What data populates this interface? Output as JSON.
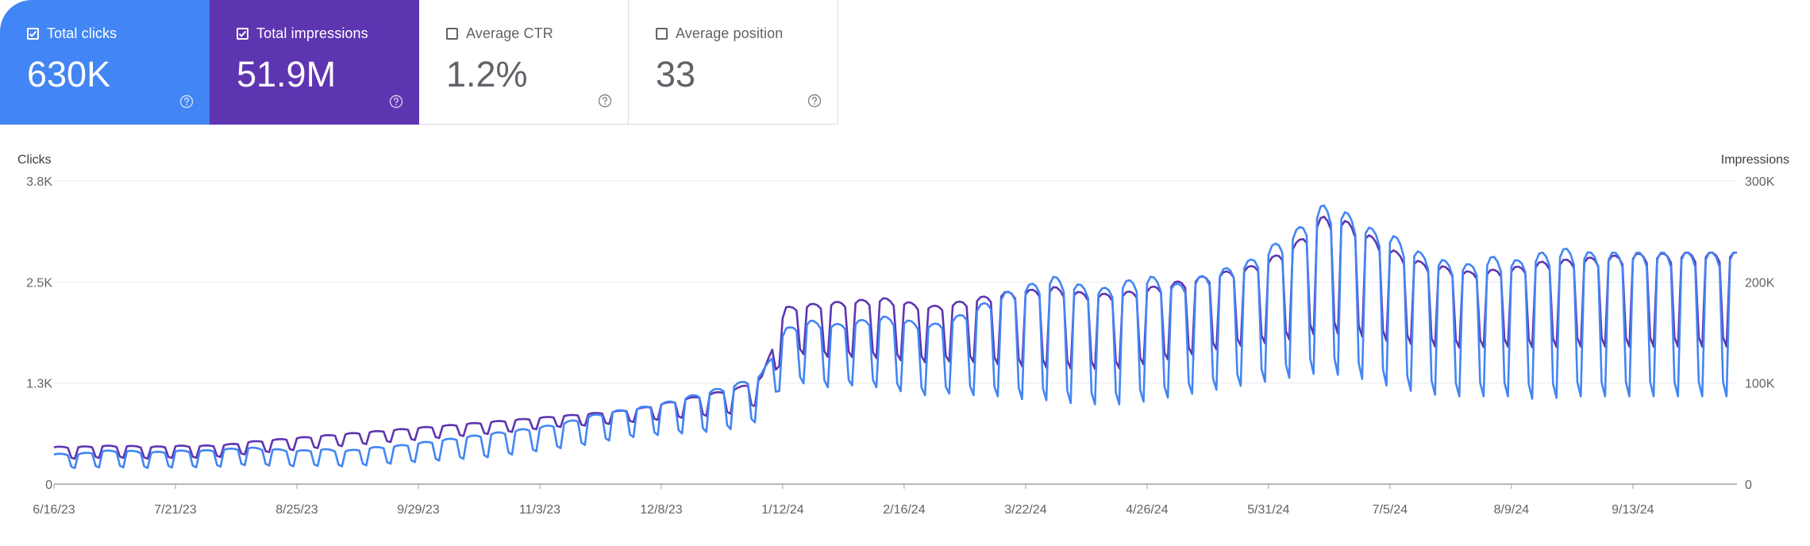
{
  "metrics": [
    {
      "label": "Total clicks",
      "value": "630K",
      "checked": true,
      "bg": "#4285f4",
      "fg": "#ffffff"
    },
    {
      "label": "Total impressions",
      "value": "51.9M",
      "checked": true,
      "bg": "#5e35b1",
      "fg": "#ffffff"
    },
    {
      "label": "Average CTR",
      "value": "1.2%",
      "checked": false,
      "bg": "#ffffff",
      "fg": "#5f6368"
    },
    {
      "label": "Average position",
      "value": "33",
      "checked": false,
      "bg": "#ffffff",
      "fg": "#5f6368"
    }
  ],
  "help_icon": "help-circle-icon",
  "colors": {
    "clicks": "#4285f4",
    "impressions": "#5e35b1",
    "grid": "#e8eaed",
    "axis": "#9aa0a6"
  },
  "chart_data": {
    "type": "line",
    "x_ticks": [
      "6/16/23",
      "7/21/23",
      "8/25/23",
      "9/29/23",
      "11/3/23",
      "12/8/23",
      "1/12/24",
      "2/16/24",
      "3/22/24",
      "4/26/24",
      "5/31/24",
      "7/5/24",
      "8/9/24",
      "9/13/24"
    ],
    "x_start": "6/16/23",
    "x_end": "10/13/24",
    "ylabel_left": "Clicks",
    "ylabel_right": "Impressions",
    "yticks_left": [
      "0",
      "1.3K",
      "2.5K",
      "3.8K"
    ],
    "yticks_right": [
      "0",
      "100K",
      "200K",
      "300K"
    ],
    "ylim_left": [
      0,
      3800
    ],
    "ylim_right": [
      0,
      300000
    ],
    "grid": true,
    "weekly_period_days": 7,
    "series": [
      {
        "name": "Clicks",
        "axis": "left",
        "color": "#4285f4",
        "weekday_peak": [
          380,
          380,
          420,
          420,
          400,
          420,
          420,
          440,
          460,
          440,
          420,
          440,
          420,
          460,
          480,
          520,
          560,
          600,
          640,
          680,
          720,
          780,
          860,
          920,
          960,
          1020,
          1100,
          1180,
          1260,
          1380,
          1950,
          2050,
          2000,
          2050,
          2100,
          2050,
          2000,
          2100,
          2250,
          2400,
          2500,
          2600,
          2500,
          2450,
          2550,
          2600,
          2500,
          2600,
          2700,
          2800,
          3000,
          3200,
          3500,
          3400,
          3200,
          3100,
          2900,
          2800,
          2750,
          2850,
          2800,
          2900,
          2950,
          2900,
          2900,
          2900,
          2900,
          2900,
          2900,
          2900
        ],
        "weekend_trough": [
          200,
          200,
          210,
          210,
          200,
          210,
          210,
          220,
          240,
          230,
          220,
          230,
          220,
          240,
          260,
          280,
          300,
          320,
          340,
          380,
          420,
          460,
          500,
          560,
          600,
          620,
          640,
          660,
          700,
          800,
          1300,
          1250,
          1200,
          1250,
          1200,
          1150,
          1100,
          1150,
          1100,
          1100,
          1050,
          1050,
          1000,
          1000,
          1000,
          1050,
          1100,
          1150,
          1200,
          1250,
          1300,
          1350,
          1400,
          1350,
          1300,
          1200,
          1150,
          1100,
          1100,
          1100,
          1100,
          1050,
          1100,
          1100,
          1100,
          1100,
          1100,
          1100,
          1100,
          1100
        ]
      },
      {
        "name": "Impressions",
        "axis": "right",
        "color": "#5e35b1",
        "weekday_peak": [
          37000,
          37000,
          38000,
          38000,
          37000,
          38000,
          38000,
          39000,
          42000,
          44000,
          46000,
          48000,
          50000,
          52000,
          54000,
          56000,
          58000,
          60000,
          62000,
          64000,
          66000,
          68000,
          70000,
          72000,
          75000,
          80000,
          85000,
          90000,
          95000,
          105000,
          175000,
          178000,
          180000,
          182000,
          184000,
          180000,
          176000,
          180000,
          185000,
          190000,
          192000,
          195000,
          190000,
          188000,
          190000,
          195000,
          200000,
          205000,
          210000,
          215000,
          225000,
          240000,
          265000,
          260000,
          245000,
          230000,
          220000,
          215000,
          210000,
          212000,
          215000,
          220000,
          222000,
          224000,
          226000,
          228000,
          228000,
          229000,
          229000,
          229000
        ],
        "weekend_trough": [
          25000,
          25000,
          26000,
          26000,
          25000,
          26000,
          26000,
          27000,
          30000,
          32000,
          34000,
          36000,
          38000,
          40000,
          42000,
          44000,
          46000,
          48000,
          50000,
          52000,
          55000,
          57000,
          58000,
          60000,
          62000,
          64000,
          66000,
          68000,
          70000,
          80000,
          130000,
          128000,
          125000,
          126000,
          124000,
          122000,
          120000,
          122000,
          120000,
          118000,
          116000,
          115000,
          114000,
          114000,
          115000,
          120000,
          125000,
          130000,
          135000,
          138000,
          140000,
          145000,
          150000,
          148000,
          145000,
          140000,
          138000,
          135000,
          135000,
          136000,
          136000,
          135000,
          136000,
          136000,
          136000,
          136000,
          136000,
          136000,
          136000,
          136000
        ]
      }
    ]
  }
}
